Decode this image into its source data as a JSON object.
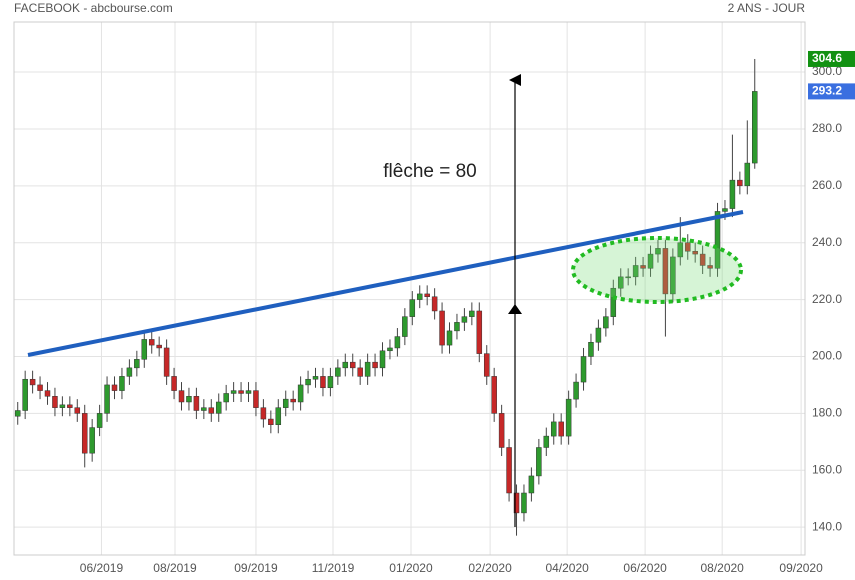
{
  "chart_data": {
    "type": "candlestick",
    "title": "FACEBOOK - abcbourse.com",
    "period": "2 ANS - JOUR",
    "annotation": "flêche = 80",
    "up_color": "#2e9a2e",
    "down_color": "#c62828",
    "grid": true,
    "xlim": [
      0,
      425
    ],
    "ylim": [
      130.2,
      317.6
    ],
    "xticks": [
      {
        "value": 47,
        "label": "06/2019"
      },
      {
        "value": 86.5,
        "label": "08/2019"
      },
      {
        "value": 130,
        "label": "09/2019"
      },
      {
        "value": 171.4,
        "label": "11/2019"
      },
      {
        "value": 213.3,
        "label": "01/2020"
      },
      {
        "value": 255.8,
        "label": "02/2020"
      },
      {
        "value": 297.2,
        "label": "04/2020"
      },
      {
        "value": 339.1,
        "label": "06/2020"
      },
      {
        "value": 380.5,
        "label": "08/2020"
      },
      {
        "value": 422.9,
        "label": "09/2020"
      }
    ],
    "yticks": [
      {
        "value": 140,
        "label": "140.0"
      },
      {
        "value": 160,
        "label": "160.0"
      },
      {
        "value": 180,
        "label": "180.0"
      },
      {
        "value": 200,
        "label": "200.0"
      },
      {
        "value": 220,
        "label": "220.0"
      },
      {
        "value": 240,
        "label": "240.0"
      },
      {
        "value": 260,
        "label": "260.0"
      },
      {
        "value": 280,
        "label": "280.0"
      },
      {
        "value": 300,
        "label": "300.0"
      }
    ],
    "x": [
      2,
      6,
      10,
      14,
      18,
      22,
      26,
      30,
      34,
      38,
      42,
      46,
      50,
      54,
      58,
      62,
      66,
      70,
      74,
      78,
      82,
      86,
      90,
      94,
      98,
      102,
      106,
      110,
      114,
      118,
      122,
      126,
      130,
      134,
      138,
      142,
      146,
      150,
      154,
      158,
      162,
      166,
      170,
      174,
      178,
      182,
      186,
      190,
      194,
      198,
      202,
      206,
      210,
      214,
      218,
      222,
      226,
      230,
      234,
      238,
      242,
      246,
      250,
      254,
      258,
      262,
      266,
      270,
      274,
      278,
      282,
      286,
      290,
      294,
      298,
      302,
      306,
      310,
      314,
      318,
      322,
      326,
      330,
      334,
      338,
      342,
      346,
      350,
      354,
      358,
      362,
      366,
      370,
      374,
      378,
      382,
      386,
      390,
      394,
      398
    ],
    "open": [
      179,
      181,
      192,
      190,
      188,
      186,
      182,
      183,
      182,
      180,
      166,
      175,
      180,
      190,
      188,
      193,
      196,
      199,
      206,
      204,
      203,
      193,
      188,
      184,
      186,
      181,
      182,
      180,
      184,
      187,
      188,
      187,
      188,
      182,
      178,
      176,
      182,
      185,
      184,
      190,
      192,
      193,
      189,
      193,
      196,
      198,
      196,
      193,
      198,
      196,
      202,
      203,
      207,
      214,
      220,
      222,
      221,
      216,
      204,
      209,
      212,
      214,
      216,
      201,
      193,
      180,
      168,
      152,
      145,
      152,
      158,
      168,
      172,
      177,
      172,
      185,
      191,
      200,
      205,
      210,
      214,
      224,
      228,
      228,
      232,
      231,
      236,
      238,
      222,
      235,
      240,
      237,
      236,
      232,
      231,
      251,
      252,
      262,
      260,
      268
    ],
    "high": [
      184,
      195,
      195,
      193,
      191,
      189,
      186,
      186,
      185,
      183,
      178,
      183,
      193,
      193,
      196,
      199,
      202,
      209,
      209,
      207,
      206,
      196,
      191,
      189,
      189,
      185,
      185,
      187,
      190,
      191,
      191,
      191,
      191,
      185,
      181,
      185,
      188,
      188,
      193,
      195,
      196,
      196,
      196,
      199,
      201,
      201,
      199,
      201,
      201,
      205,
      206,
      210,
      217,
      223,
      225,
      225,
      224,
      219,
      212,
      215,
      217,
      219,
      219,
      204,
      196,
      183,
      171,
      155,
      155,
      161,
      171,
      175,
      180,
      180,
      188,
      194,
      203,
      208,
      213,
      217,
      227,
      231,
      231,
      235,
      235,
      239,
      241,
      241,
      238,
      249,
      243,
      240,
      239,
      235,
      254,
      255,
      278,
      265,
      283,
      304.6
    ],
    "low": [
      176,
      178,
      187,
      185,
      183,
      179,
      179,
      179,
      177,
      161,
      163,
      172,
      177,
      185,
      185,
      190,
      193,
      196,
      201,
      200,
      190,
      185,
      181,
      181,
      178,
      178,
      177,
      177,
      181,
      184,
      184,
      184,
      179,
      175,
      173,
      173,
      179,
      181,
      181,
      187,
      189,
      186,
      186,
      190,
      193,
      193,
      190,
      190,
      193,
      193,
      199,
      200,
      204,
      211,
      217,
      218,
      213,
      201,
      201,
      206,
      209,
      211,
      198,
      190,
      177,
      165,
      149,
      137,
      142,
      149,
      155,
      165,
      169,
      169,
      169,
      182,
      188,
      197,
      202,
      207,
      211,
      221,
      225,
      225,
      228,
      228,
      233,
      207,
      219,
      232,
      234,
      233,
      229,
      228,
      228,
      248,
      249,
      257,
      257,
      266
    ],
    "close": [
      181,
      192,
      190,
      188,
      186,
      182,
      183,
      182,
      180,
      166,
      175,
      180,
      190,
      188,
      193,
      196,
      199,
      206,
      204,
      203,
      193,
      188,
      184,
      186,
      181,
      182,
      180,
      184,
      187,
      188,
      187,
      188,
      182,
      178,
      176,
      182,
      185,
      184,
      190,
      192,
      193,
      189,
      193,
      196,
      198,
      196,
      193,
      198,
      196,
      202,
      203,
      207,
      214,
      220,
      222,
      221,
      216,
      204,
      209,
      212,
      214,
      216,
      201,
      193,
      180,
      168,
      152,
      145,
      152,
      158,
      168,
      172,
      177,
      172,
      185,
      191,
      200,
      205,
      210,
      214,
      224,
      228,
      228,
      232,
      231,
      236,
      238,
      222,
      235,
      240,
      237,
      236,
      232,
      231,
      251,
      252,
      262,
      260,
      268,
      293.2
    ]
  }
}
